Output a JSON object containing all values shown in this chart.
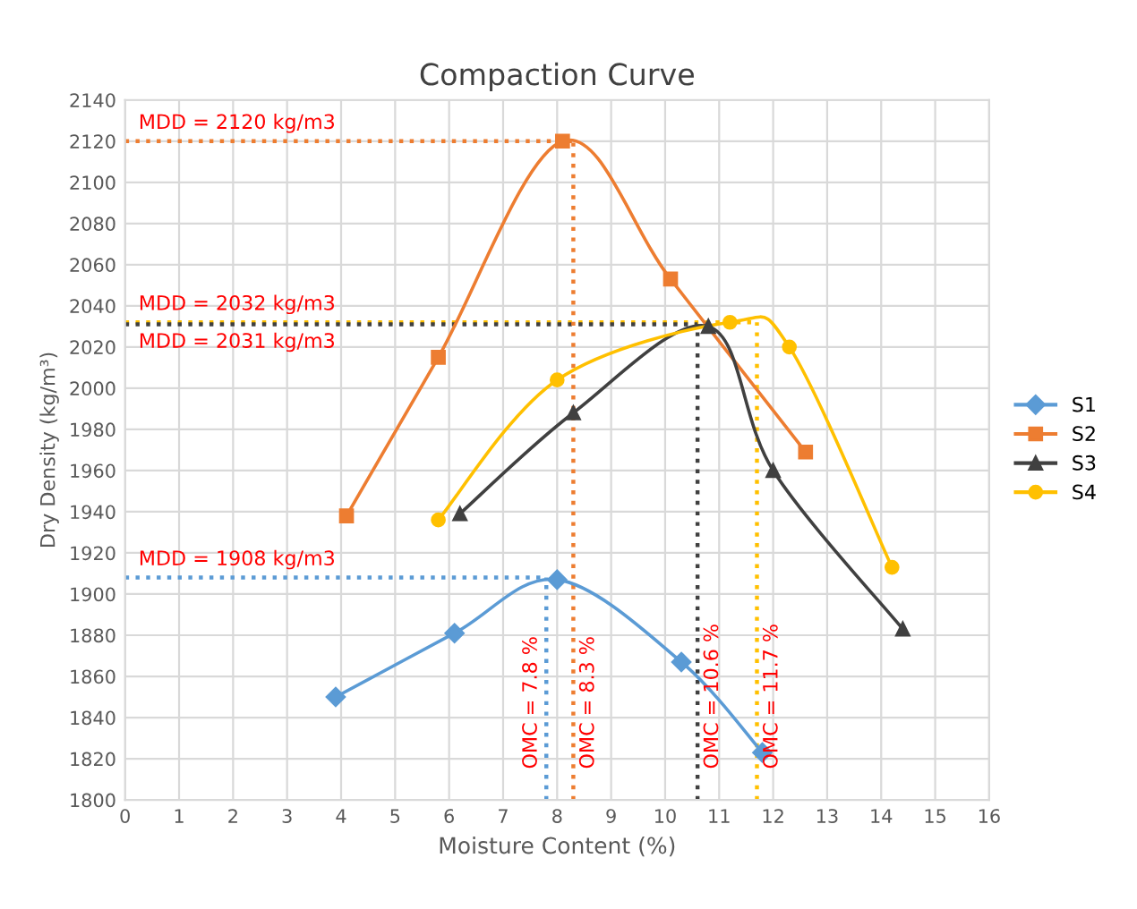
{
  "chart_data": {
    "type": "line",
    "title": "Compaction Curve",
    "xlabel": "Moisture Content (%)",
    "ylabel": "Dry Density (kg/m³)",
    "xlim": [
      0,
      16
    ],
    "xticks": [
      0,
      1,
      2,
      3,
      4,
      5,
      6,
      7,
      8,
      9,
      10,
      11,
      12,
      13,
      14,
      15,
      16
    ],
    "ylim": [
      1800,
      2140
    ],
    "yticks": [
      1800,
      1820,
      1840,
      1860,
      1880,
      1900,
      1920,
      1940,
      1960,
      1980,
      2000,
      2020,
      2040,
      2060,
      2080,
      2100,
      2120,
      2140
    ],
    "grid": true,
    "legend": "right",
    "line_style": "solid",
    "series": [
      {
        "name": "S1",
        "color": "#5b9bd5",
        "marker": "diamond",
        "x": [
          3.9,
          6.1,
          8.0,
          10.3,
          11.8
        ],
        "values": [
          1850,
          1881,
          1907,
          1867,
          1823
        ]
      },
      {
        "name": "S2",
        "color": "#ed7d31",
        "marker": "square",
        "x": [
          4.1,
          5.8,
          8.1,
          10.1,
          12.6
        ],
        "values": [
          1938,
          2015,
          2120,
          2053,
          1969
        ]
      },
      {
        "name": "S3",
        "color": "#404040",
        "marker": "triangle",
        "x": [
          6.2,
          8.3,
          10.8,
          12.0,
          14.4
        ],
        "values": [
          1939,
          1988,
          2030,
          1960,
          1883
        ]
      },
      {
        "name": "S4",
        "color": "#ffc000",
        "marker": "circle",
        "x": [
          5.8,
          8.0,
          11.2,
          12.3,
          14.2
        ],
        "values": [
          1936,
          2004,
          2032,
          2020,
          1913
        ]
      }
    ],
    "ref_lines": [
      {
        "axis": "y",
        "value": 2120,
        "label": "MDD = 2120 kg/m3",
        "color": "#ed7d31",
        "line_style": "dotted"
      },
      {
        "axis": "y",
        "value": 2032,
        "label": "MDD = 2032 kg/m3",
        "color": "#ffc000",
        "line_style": "dotted"
      },
      {
        "axis": "y",
        "value": 2031,
        "label": "MDD = 2031 kg/m3",
        "color": "#404040",
        "line_style": "dotted"
      },
      {
        "axis": "y",
        "value": 1908,
        "label": "MDD = 1908 kg/m3",
        "color": "#5b9bd5",
        "line_style": "dotted"
      },
      {
        "axis": "x",
        "value": 7.8,
        "label": "OMC = 7.8 %",
        "color": "#5b9bd5",
        "line_style": "dotted"
      },
      {
        "axis": "x",
        "value": 8.3,
        "label": "OMC = 8.3 %",
        "color": "#ed7d31",
        "line_style": "dotted"
      },
      {
        "axis": "x",
        "value": 10.6,
        "label": "OMC = 10.6 %",
        "color": "#404040",
        "line_style": "dotted"
      },
      {
        "axis": "x",
        "value": 11.7,
        "label": "OMC = 11.7 %",
        "color": "#ffc000",
        "line_style": "dotted"
      }
    ]
  }
}
